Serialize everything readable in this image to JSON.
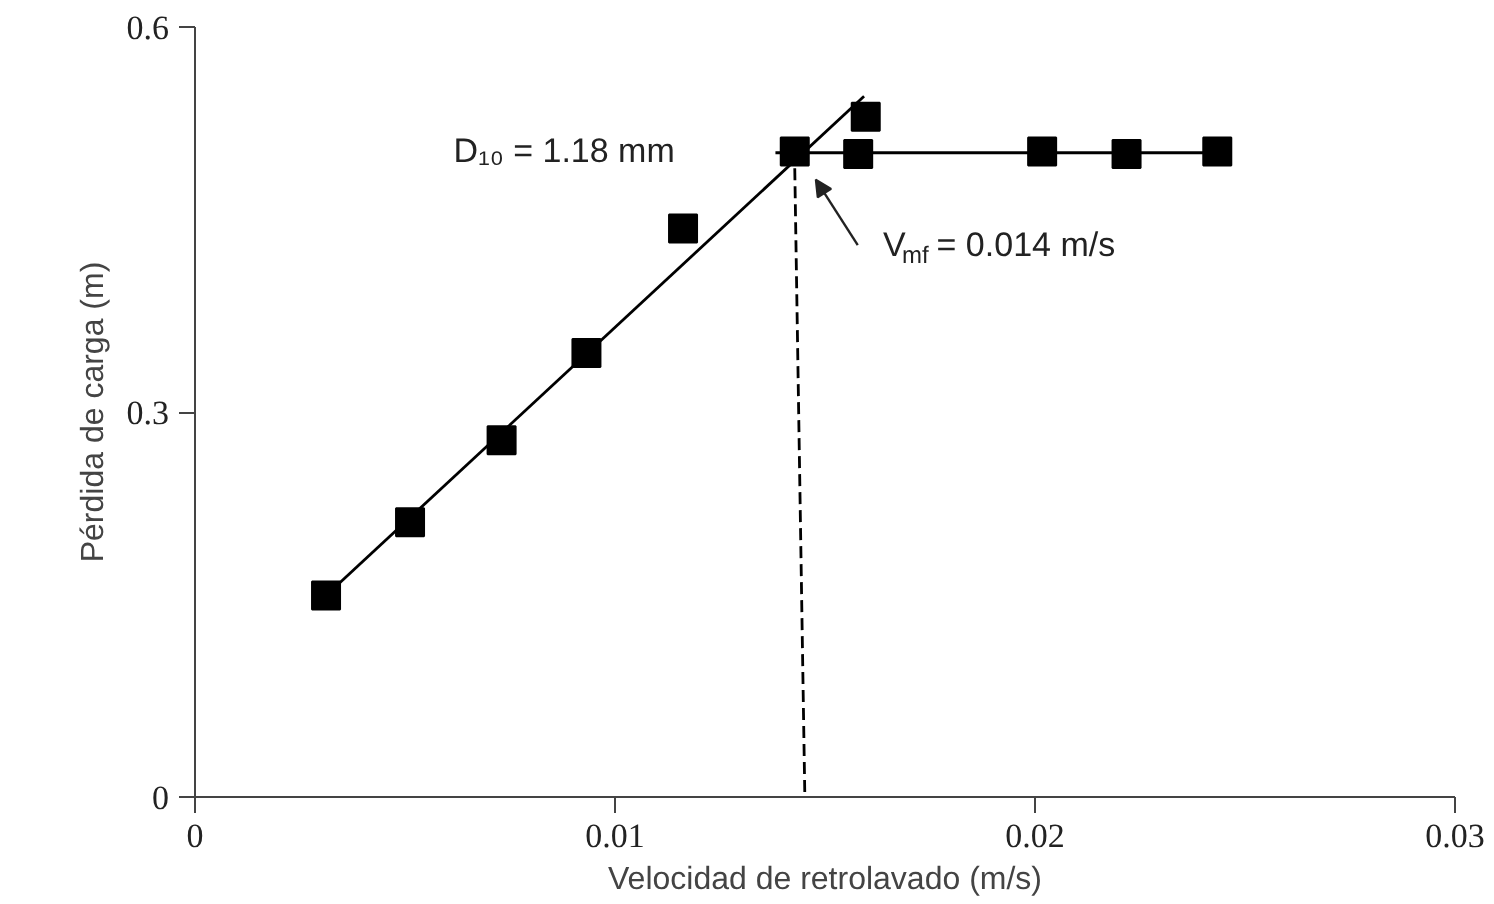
{
  "chart_data": {
    "type": "scatter",
    "xlabel": "Velocidad de retrolavado (m/s)",
    "ylabel": "Pérdida de carga (m)",
    "xlim": [
      0,
      0.03
    ],
    "ylim": [
      0,
      0.6
    ],
    "xticks": [
      0,
      0.01,
      0.02,
      0.03
    ],
    "yticks": [
      0,
      0.3,
      0.6
    ],
    "grid": false,
    "series": [
      {
        "marker": "square",
        "color": "#000000",
        "x": [
          0.00312,
          0.00512,
          0.0073,
          0.00932,
          0.01162,
          0.01428,
          0.01579,
          0.01597,
          0.02017,
          0.02218,
          0.02434
        ],
        "values": [
          0.157,
          0.214,
          0.278,
          0.346,
          0.443,
          0.503,
          0.501,
          0.53,
          0.503,
          0.501,
          0.503
        ]
      },
      {
        "type": "line",
        "color": "#000000",
        "line_style": "solid",
        "x": [
          0.00312,
          0.01593
        ],
        "values": [
          0.157,
          0.546
        ]
      },
      {
        "type": "line",
        "color": "#000000",
        "line_style": "solid",
        "x": [
          0.01382,
          0.02434
        ],
        "values": [
          0.502,
          0.502
        ]
      },
      {
        "type": "line",
        "color": "#000000",
        "line_style": "dashed",
        "x": [
          0.01428,
          0.01452
        ],
        "values": [
          0.49,
          0
        ]
      }
    ],
    "annotations": [
      "D₁₀ = 1.18 mm",
      "V$_{mf}$ = 0.014 m/s"
    ]
  }
}
